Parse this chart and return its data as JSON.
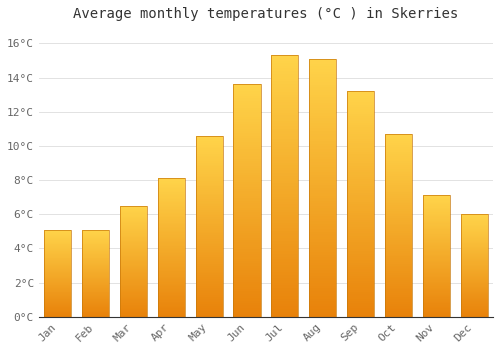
{
  "title": "Average monthly temperatures (°C ) in Skerries",
  "months": [
    "Jan",
    "Feb",
    "Mar",
    "Apr",
    "May",
    "Jun",
    "Jul",
    "Aug",
    "Sep",
    "Oct",
    "Nov",
    "Dec"
  ],
  "values": [
    5.1,
    5.1,
    6.5,
    8.1,
    10.6,
    13.6,
    15.3,
    15.1,
    13.2,
    10.7,
    7.1,
    6.0
  ],
  "bar_color_bottom": "#E8820A",
  "bar_color_top": "#FFD44A",
  "bar_edge_color": "#C8780A",
  "ylim": [
    0,
    17
  ],
  "yticks": [
    0,
    2,
    4,
    6,
    8,
    10,
    12,
    14,
    16
  ],
  "ytick_labels": [
    "0°C",
    "2°C",
    "4°C",
    "6°C",
    "8°C",
    "10°C",
    "12°C",
    "14°C",
    "16°C"
  ],
  "background_color": "#FFFFFF",
  "grid_color": "#DDDDDD",
  "title_fontsize": 10,
  "tick_fontsize": 8,
  "title_color": "#333333",
  "tick_color": "#666666",
  "bar_width": 0.72
}
